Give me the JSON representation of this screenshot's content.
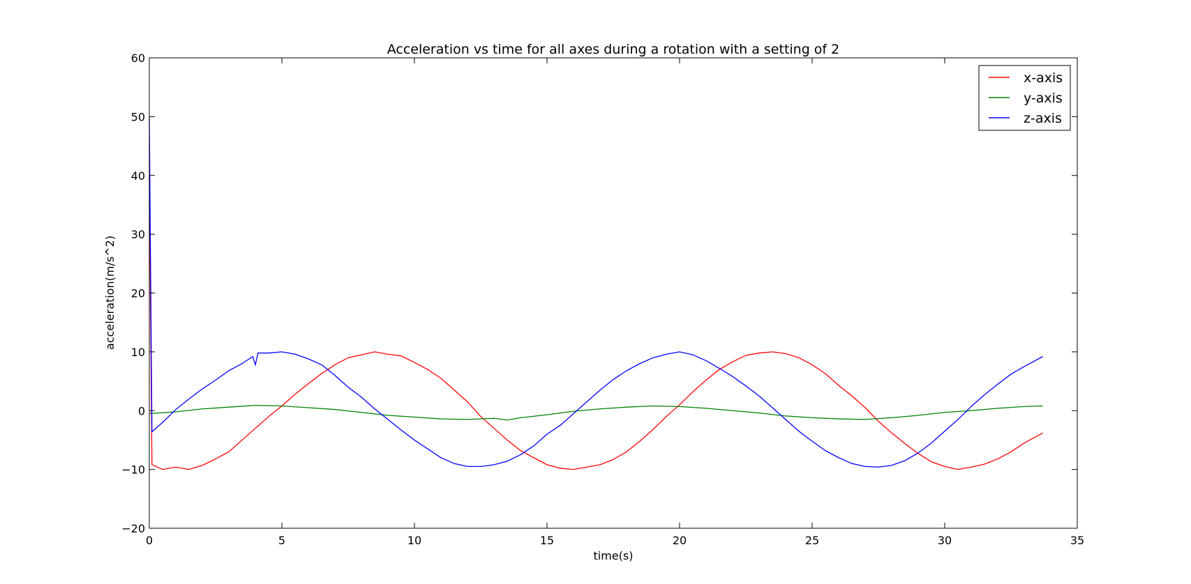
{
  "chart_data": {
    "type": "line",
    "title": "Acceleration vs time for all axes during a rotation with a setting of 2",
    "xlabel": "time(s)",
    "ylabel": "acceleration(m/s^2)",
    "xlim": [
      0,
      35
    ],
    "ylim": [
      -20,
      60
    ],
    "xticks": [
      0,
      5,
      10,
      15,
      20,
      25,
      30,
      35
    ],
    "yticks": [
      -20,
      -10,
      0,
      10,
      20,
      30,
      40,
      50,
      60
    ],
    "xtick_labels": [
      "0",
      "5",
      "10",
      "15",
      "20",
      "25",
      "30",
      "35"
    ],
    "ytick_labels": [
      "−20",
      "−10",
      "0",
      "10",
      "20",
      "30",
      "40",
      "50",
      "60"
    ],
    "grid": false,
    "legend_position": "top-right",
    "series": [
      {
        "name": "x-axis",
        "color": "#ff0000",
        "points": [
          [
            0,
            40
          ],
          [
            0.1,
            -9.2
          ],
          [
            0.5,
            -10
          ],
          [
            1,
            -9.6
          ],
          [
            1.5,
            -10
          ],
          [
            2,
            -9.3
          ],
          [
            2.5,
            -8.2
          ],
          [
            3,
            -7
          ],
          [
            3.5,
            -5
          ],
          [
            4,
            -3
          ],
          [
            4.5,
            -1
          ],
          [
            5,
            0.8
          ],
          [
            5.5,
            2.8
          ],
          [
            6,
            4.6
          ],
          [
            6.5,
            6.3
          ],
          [
            7,
            7.8
          ],
          [
            7.5,
            9
          ],
          [
            8,
            9.5
          ],
          [
            8.5,
            10
          ],
          [
            9,
            9.6
          ],
          [
            9.5,
            9.3
          ],
          [
            10,
            8.2
          ],
          [
            10.5,
            7
          ],
          [
            11,
            5.5
          ],
          [
            11.5,
            3.5
          ],
          [
            12,
            1.5
          ],
          [
            12.5,
            -1
          ],
          [
            13,
            -3
          ],
          [
            13.5,
            -5
          ],
          [
            14,
            -6.8
          ],
          [
            14.5,
            -8
          ],
          [
            15,
            -9.2
          ],
          [
            15.5,
            -9.8
          ],
          [
            16,
            -10
          ],
          [
            16.5,
            -9.6
          ],
          [
            17,
            -9.2
          ],
          [
            17.5,
            -8.3
          ],
          [
            18,
            -7
          ],
          [
            18.5,
            -5.2
          ],
          [
            19,
            -3.2
          ],
          [
            19.5,
            -1
          ],
          [
            20,
            1
          ],
          [
            20.5,
            3.2
          ],
          [
            21,
            5.2
          ],
          [
            21.5,
            7
          ],
          [
            22,
            8.3
          ],
          [
            22.5,
            9.4
          ],
          [
            23,
            9.8
          ],
          [
            23.5,
            10
          ],
          [
            24,
            9.7
          ],
          [
            24.5,
            9
          ],
          [
            25,
            7.8
          ],
          [
            25.5,
            6.3
          ],
          [
            26,
            4.3
          ],
          [
            26.5,
            2.5
          ],
          [
            27,
            0.5
          ],
          [
            27.5,
            -1.8
          ],
          [
            28,
            -3.8
          ],
          [
            28.5,
            -5.6
          ],
          [
            29,
            -7.3
          ],
          [
            29.5,
            -8.7
          ],
          [
            30,
            -9.5
          ],
          [
            30.5,
            -10
          ],
          [
            31,
            -9.6
          ],
          [
            31.5,
            -9.1
          ],
          [
            32,
            -8.2
          ],
          [
            32.5,
            -7
          ],
          [
            33,
            -5.5
          ],
          [
            33.7,
            -3.8
          ]
        ]
      },
      {
        "name": "y-axis",
        "color": "#008000",
        "points": [
          [
            0,
            -0.5
          ],
          [
            1,
            -0.2
          ],
          [
            2,
            0.3
          ],
          [
            3,
            0.6
          ],
          [
            4,
            0.9
          ],
          [
            5,
            0.8
          ],
          [
            6,
            0.5
          ],
          [
            7,
            0.2
          ],
          [
            8,
            -0.3
          ],
          [
            9,
            -0.8
          ],
          [
            10,
            -1.1
          ],
          [
            11,
            -1.4
          ],
          [
            12,
            -1.5
          ],
          [
            13,
            -1.3
          ],
          [
            13.5,
            -1.6
          ],
          [
            14,
            -1.2
          ],
          [
            15,
            -0.7
          ],
          [
            16,
            -0.1
          ],
          [
            17,
            0.3
          ],
          [
            18,
            0.6
          ],
          [
            19,
            0.8
          ],
          [
            20,
            0.7
          ],
          [
            21,
            0.4
          ],
          [
            22,
            0
          ],
          [
            23,
            -0.4
          ],
          [
            24,
            -0.9
          ],
          [
            25,
            -1.2
          ],
          [
            26,
            -1.4
          ],
          [
            27,
            -1.5
          ],
          [
            28,
            -1.2
          ],
          [
            29,
            -0.8
          ],
          [
            30,
            -0.3
          ],
          [
            31,
            0
          ],
          [
            32,
            0.4
          ],
          [
            33,
            0.7
          ],
          [
            33.7,
            0.8
          ]
        ]
      },
      {
        "name": "z-axis",
        "color": "#0000ff",
        "points": [
          [
            0,
            50
          ],
          [
            0.1,
            -3.6
          ],
          [
            0.5,
            -2
          ],
          [
            1,
            0.2
          ],
          [
            1.5,
            2
          ],
          [
            2,
            3.7
          ],
          [
            2.5,
            5.2
          ],
          [
            3,
            6.8
          ],
          [
            3.5,
            8
          ],
          [
            3.9,
            9.2
          ],
          [
            4,
            7.8
          ],
          [
            4.1,
            9.8
          ],
          [
            4.5,
            9.8
          ],
          [
            5,
            10
          ],
          [
            5.5,
            9.6
          ],
          [
            6,
            8.8
          ],
          [
            6.5,
            7.8
          ],
          [
            7,
            6
          ],
          [
            7.5,
            4
          ],
          [
            8,
            2.3
          ],
          [
            8.5,
            0.3
          ],
          [
            9,
            -1.5
          ],
          [
            9.5,
            -3.3
          ],
          [
            10,
            -5
          ],
          [
            10.5,
            -6.5
          ],
          [
            11,
            -8
          ],
          [
            11.5,
            -9
          ],
          [
            12,
            -9.5
          ],
          [
            12.5,
            -9.5
          ],
          [
            13,
            -9.2
          ],
          [
            13.5,
            -8.6
          ],
          [
            14,
            -7.5
          ],
          [
            14.5,
            -6
          ],
          [
            15,
            -4
          ],
          [
            15.5,
            -2.5
          ],
          [
            16,
            -0.5
          ],
          [
            16.5,
            1.5
          ],
          [
            17,
            3.5
          ],
          [
            17.5,
            5.3
          ],
          [
            18,
            6.8
          ],
          [
            18.5,
            8
          ],
          [
            19,
            9
          ],
          [
            19.5,
            9.6
          ],
          [
            20,
            10
          ],
          [
            20.5,
            9.5
          ],
          [
            21,
            8.5
          ],
          [
            21.5,
            7.2
          ],
          [
            22,
            5.8
          ],
          [
            22.5,
            4.2
          ],
          [
            23,
            2.5
          ],
          [
            23.5,
            0.5
          ],
          [
            24,
            -1.5
          ],
          [
            24.5,
            -3.5
          ],
          [
            25,
            -5.2
          ],
          [
            25.5,
            -6.8
          ],
          [
            26,
            -8
          ],
          [
            26.5,
            -9
          ],
          [
            27,
            -9.5
          ],
          [
            27.5,
            -9.6
          ],
          [
            28,
            -9.3
          ],
          [
            28.5,
            -8.5
          ],
          [
            29,
            -7.2
          ],
          [
            29.5,
            -5.5
          ],
          [
            30,
            -3.5
          ],
          [
            30.5,
            -1.5
          ],
          [
            31,
            0.7
          ],
          [
            31.5,
            2.7
          ],
          [
            32,
            4.5
          ],
          [
            32.5,
            6.2
          ],
          [
            33,
            7.5
          ],
          [
            33.7,
            9.2
          ]
        ]
      }
    ]
  }
}
